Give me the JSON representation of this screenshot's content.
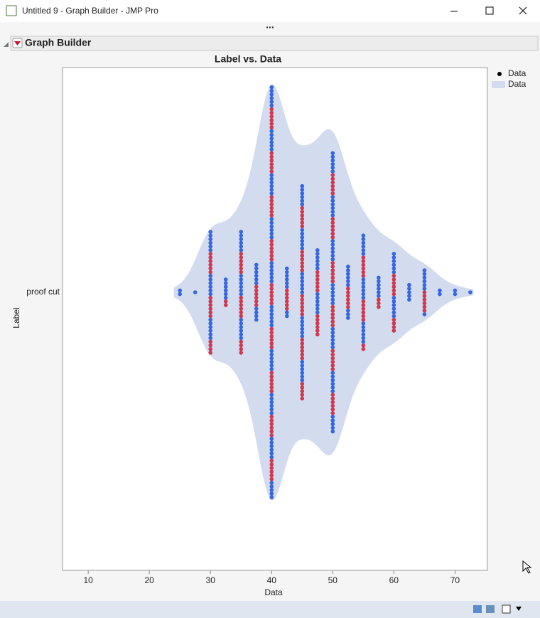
{
  "window": {
    "title": "Untitled 9 - Graph Builder - JMP Pro"
  },
  "panel": {
    "title": "Graph Builder"
  },
  "chart_data": {
    "type": "violin-dot",
    "title": "Label vs. Data",
    "x_label": "Data",
    "y_label": "Label",
    "categories": [
      "proof cut"
    ],
    "xlim": [
      5.8,
      75.3
    ],
    "xticks": [
      10,
      20,
      30,
      40,
      50,
      60,
      70
    ],
    "series": [
      {
        "name": "Data",
        "colors": [
          "#3566e0",
          "#d0384f"
        ],
        "x": [
          25,
          27.5,
          30,
          32.5,
          35,
          37.5,
          40,
          42.5,
          45,
          47.5,
          50,
          52.5,
          55,
          57.5,
          60,
          62.5,
          65,
          67.5,
          70,
          72.5
        ],
        "counts": [
          2,
          1,
          34,
          8,
          34,
          16,
          113,
          14,
          59,
          24,
          77,
          15,
          32,
          9,
          22,
          5,
          13,
          2,
          2,
          1
        ]
      }
    ],
    "violin": {
      "name": "Data",
      "color": "#d3dcef"
    }
  }
}
